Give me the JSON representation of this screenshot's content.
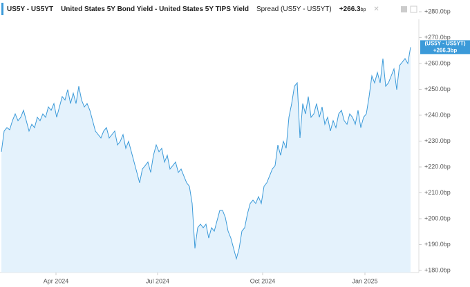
{
  "header": {
    "symbol": "US5Y - US5YT",
    "description": "United States 5Y Bond Yield - United States 5Y TIPS Yield",
    "series_label": "Spread (US5Y - US5YT)",
    "last_value": "+266.3",
    "last_unit": "bp"
  },
  "chart_data": {
    "type": "area",
    "color": "#3b9ad9",
    "fill": "#e4f2fc",
    "badge": {
      "title": "(US5Y - US5YT)",
      "label": "+266.3bp"
    },
    "values": [
      225.9,
      233.9,
      235.2,
      234.4,
      237.9,
      240.5,
      237.9,
      239.2,
      241.9,
      237.9,
      233.9,
      236.5,
      235.2,
      239.2,
      237.9,
      240.5,
      239.2,
      243.2,
      241.9,
      244.5,
      239.2,
      243.2,
      247.2,
      245.9,
      249.9,
      244.5,
      248.5,
      244.5,
      251.2,
      245.9,
      243.2,
      244.5,
      241.9,
      237.9,
      233.9,
      232.5,
      231.2,
      233.9,
      235.2,
      231.2,
      232.5,
      233.9,
      228.5,
      229.9,
      232.5,
      227.2,
      229.9,
      225.9,
      221.9,
      217.9,
      213.9,
      219.2,
      220.5,
      221.9,
      217.9,
      224.5,
      228.5,
      225.9,
      227.2,
      221.9,
      224.5,
      219.2,
      220.5,
      221.9,
      217.9,
      219.2,
      216.5,
      213.9,
      212.5,
      205.9,
      188.5,
      196.5,
      197.9,
      196.5,
      197.9,
      192.5,
      196.5,
      195.2,
      199.2,
      203.2,
      203.2,
      200.5,
      195.2,
      192.5,
      188.5,
      184.5,
      188.5,
      195.2,
      196.5,
      201.9,
      205.9,
      207.2,
      205.9,
      208.5,
      205.9,
      212.5,
      213.9,
      216.5,
      219.2,
      220.5,
      228.5,
      224.5,
      229.9,
      227.2,
      239.2,
      244.5,
      251.2,
      252.5,
      231.2,
      244.5,
      240.5,
      247.2,
      239.2,
      240.5,
      244.5,
      239.2,
      243.2,
      236.5,
      239.2,
      233.9,
      237.9,
      235.2,
      240.5,
      241.9,
      237.9,
      236.5,
      240.5,
      239.2,
      236.5,
      241.9,
      235.2,
      239.2,
      240.5,
      247.2,
      255.2,
      252.5,
      256.5,
      252.5,
      261.9,
      251.2,
      252.5,
      255.2,
      257.9,
      249.9,
      259.2,
      260.5,
      261.9,
      260.0,
      266.3
    ],
    "xlim": [
      0,
      148
    ],
    "xticks": [
      {
        "value": 19.75,
        "label": "Apr 2024"
      },
      {
        "value": 56.5,
        "label": "Jul 2024"
      },
      {
        "value": 94.5,
        "label": "Oct 2024"
      },
      {
        "value": 131.5,
        "label": "Jan 2025"
      }
    ],
    "ylim": [
      180,
      280
    ],
    "yticks": [
      {
        "value": 180,
        "label": "+180.0bp"
      },
      {
        "value": 190,
        "label": "+190.0bp"
      },
      {
        "value": 200,
        "label": "+200.0bp"
      },
      {
        "value": 210,
        "label": "+210.0bp"
      },
      {
        "value": 220,
        "label": "+220.0bp"
      },
      {
        "value": 230,
        "label": "+230.0bp"
      },
      {
        "value": 240,
        "label": "+240.0bp"
      },
      {
        "value": 250,
        "label": "+250.0bp"
      },
      {
        "value": 260,
        "label": "+260.0bp"
      },
      {
        "value": 270,
        "label": "+270.0bp"
      },
      {
        "value": 280,
        "label": "+280.0bp"
      }
    ]
  }
}
